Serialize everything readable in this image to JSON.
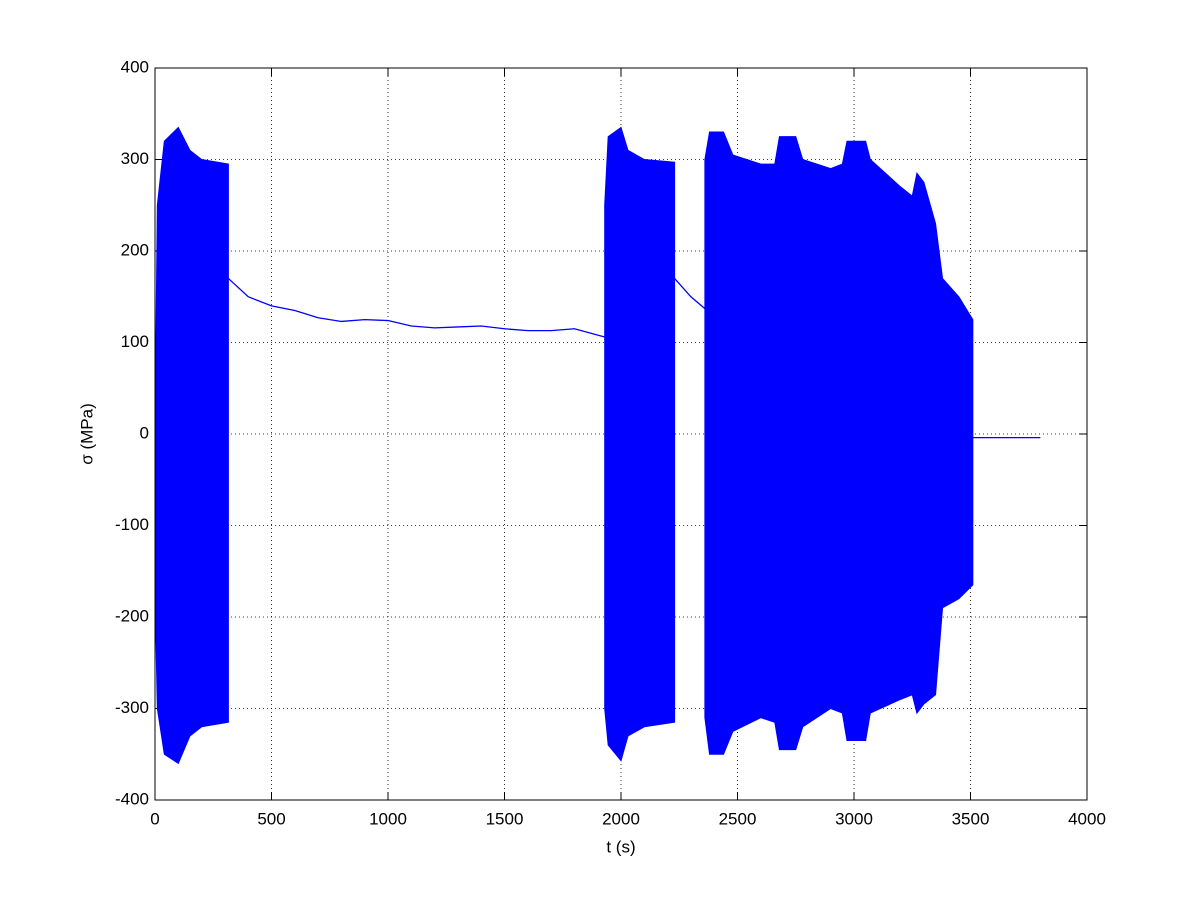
{
  "chart_data": {
    "type": "line",
    "xlabel": "t (s)",
    "ylabel": "σ (MPa)",
    "xlim": [
      0,
      4000
    ],
    "ylim": [
      -400,
      400
    ],
    "xticks": [
      0,
      500,
      1000,
      1500,
      2000,
      2500,
      3000,
      3500,
      4000
    ],
    "yticks": [
      -400,
      -300,
      -200,
      -100,
      0,
      100,
      200,
      300,
      400
    ],
    "grid": true,
    "color": "#0000ff",
    "bands": [
      {
        "x": [
          0,
          10,
          40,
          100,
          150,
          200,
          315
        ],
        "upper": [
          0,
          250,
          320,
          335,
          310,
          300,
          295
        ],
        "lower": [
          -170,
          -300,
          -350,
          -360,
          -330,
          -320,
          -315
        ]
      },
      {
        "x": [
          1930,
          1945,
          2000,
          2030,
          2100,
          2230
        ],
        "upper": [
          250,
          325,
          335,
          310,
          300,
          297
        ],
        "lower": [
          -300,
          -340,
          -357,
          -330,
          -320,
          -315
        ]
      },
      {
        "x": [
          2360,
          2380,
          2440,
          2480,
          2600,
          2660,
          2680,
          2750,
          2780,
          2900,
          2950,
          2970,
          3050,
          3070,
          3200,
          3250,
          3270,
          3300,
          3350,
          3380,
          3450,
          3510
        ],
        "upper": [
          300,
          330,
          330,
          305,
          295,
          295,
          325,
          325,
          300,
          290,
          295,
          320,
          320,
          300,
          270,
          260,
          285,
          275,
          230,
          170,
          150,
          125
        ],
        "lower": [
          -310,
          -350,
          -350,
          -325,
          -310,
          -315,
          -345,
          -345,
          -320,
          -300,
          -305,
          -335,
          -335,
          -305,
          -290,
          -285,
          -305,
          -295,
          -285,
          -190,
          -180,
          -165
        ]
      }
    ],
    "line": {
      "x": [
        315,
        400,
        500,
        600,
        700,
        800,
        900,
        1000,
        1100,
        1200,
        1300,
        1400,
        1500,
        1600,
        1700,
        1800,
        1930,
        2000,
        2230,
        2300,
        2360,
        2400,
        3510,
        3800
      ],
      "values": [
        170,
        150,
        140,
        135,
        127,
        123,
        125,
        124,
        118,
        116,
        117,
        118,
        115,
        113,
        113,
        115,
        106,
        null,
        170,
        150,
        137,
        null,
        -4,
        -4
      ]
    }
  }
}
